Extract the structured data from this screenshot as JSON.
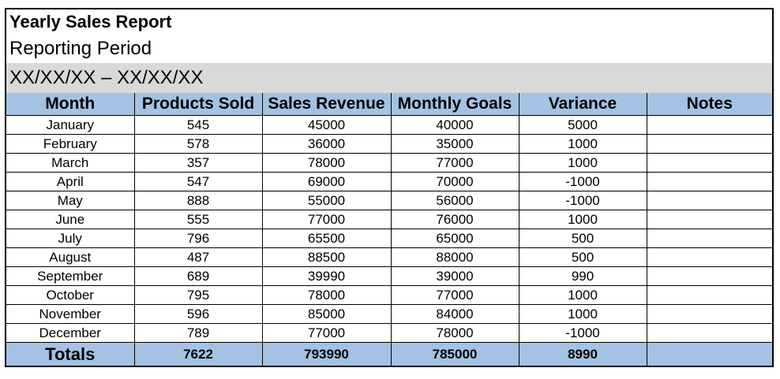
{
  "report": {
    "title": "Yearly Sales Report",
    "subtitle": "Reporting Period",
    "period": "XX/XX/XX – XX/XX/XX"
  },
  "table": {
    "headers": [
      "Month",
      "Products Sold",
      "Sales Revenue",
      "Monthly Goals",
      "Variance",
      "Notes"
    ],
    "rows": [
      {
        "month": "January",
        "sold": "545",
        "revenue": "45000",
        "goal": "40000",
        "variance": "5000",
        "notes": ""
      },
      {
        "month": "February",
        "sold": "578",
        "revenue": "36000",
        "goal": "35000",
        "variance": "1000",
        "notes": ""
      },
      {
        "month": "March",
        "sold": "357",
        "revenue": "78000",
        "goal": "77000",
        "variance": "1000",
        "notes": ""
      },
      {
        "month": "April",
        "sold": "547",
        "revenue": "69000",
        "goal": "70000",
        "variance": "-1000",
        "notes": ""
      },
      {
        "month": "May",
        "sold": "888",
        "revenue": "55000",
        "goal": "56000",
        "variance": "-1000",
        "notes": ""
      },
      {
        "month": "June",
        "sold": "555",
        "revenue": "77000",
        "goal": "76000",
        "variance": "1000",
        "notes": ""
      },
      {
        "month": "July",
        "sold": "796",
        "revenue": "65500",
        "goal": "65000",
        "variance": "500",
        "notes": ""
      },
      {
        "month": "August",
        "sold": "487",
        "revenue": "88500",
        "goal": "88000",
        "variance": "500",
        "notes": ""
      },
      {
        "month": "September",
        "sold": "689",
        "revenue": "39990",
        "goal": "39000",
        "variance": "990",
        "notes": ""
      },
      {
        "month": "October",
        "sold": "795",
        "revenue": "78000",
        "goal": "77000",
        "variance": "1000",
        "notes": ""
      },
      {
        "month": "November",
        "sold": "596",
        "revenue": "85000",
        "goal": "84000",
        "variance": "1000",
        "notes": ""
      },
      {
        "month": "December",
        "sold": "789",
        "revenue": "77000",
        "goal": "78000",
        "variance": "-1000",
        "notes": ""
      }
    ],
    "totals": {
      "label": "Totals",
      "sold": "7622",
      "revenue": "793990",
      "goal": "785000",
      "variance": "8990",
      "notes": ""
    }
  },
  "colors": {
    "header_fill": "#a4c2e3",
    "period_fill": "#d9d9d9"
  }
}
